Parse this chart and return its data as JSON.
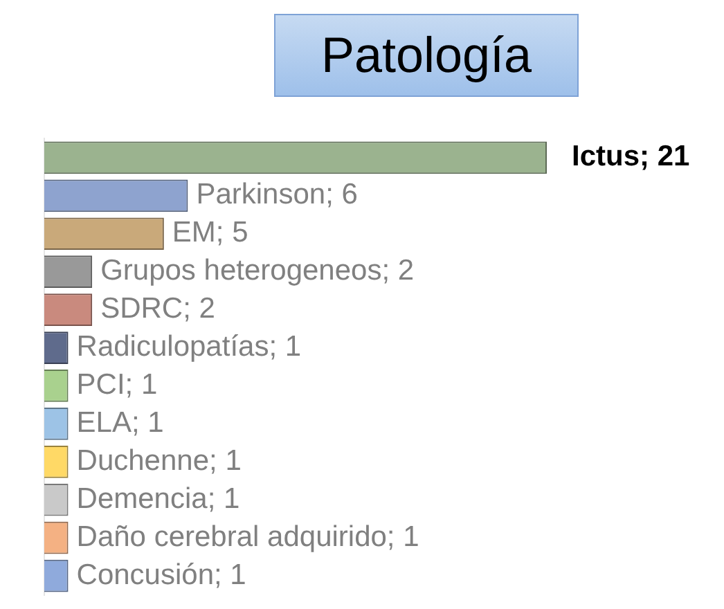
{
  "chart_data": {
    "type": "bar",
    "orientation": "horizontal",
    "title": "Patología",
    "categories": [
      null,
      null,
      null,
      null,
      null,
      null,
      null,
      null,
      null,
      null,
      null,
      null
    ],
    "values": [
      21,
      6,
      5,
      2,
      2,
      1,
      1,
      1,
      1,
      1,
      1,
      1
    ],
    "value_labels": [
      "Ictus; 21",
      "Parkinson; 6",
      "EM; 5",
      "Grupos heterogeneos; 2",
      "SDRC; 2",
      "Radiculopatías; 1",
      "PCI; 1",
      "ELA; 1",
      "Duchenne; 1",
      "Demencia; 1",
      "Daño cerebral adquirido; 1",
      "Concusión; 1"
    ],
    "colors": [
      "#9bb38f",
      "#8ea3cf",
      "#c9a97a",
      "#999999",
      "#c98a7e",
      "#5f6b8c",
      "#a9d18e",
      "#9dc3e6",
      "#ffd966",
      "#c9c9c9",
      "#f4b183",
      "#8faadc"
    ]
  }
}
